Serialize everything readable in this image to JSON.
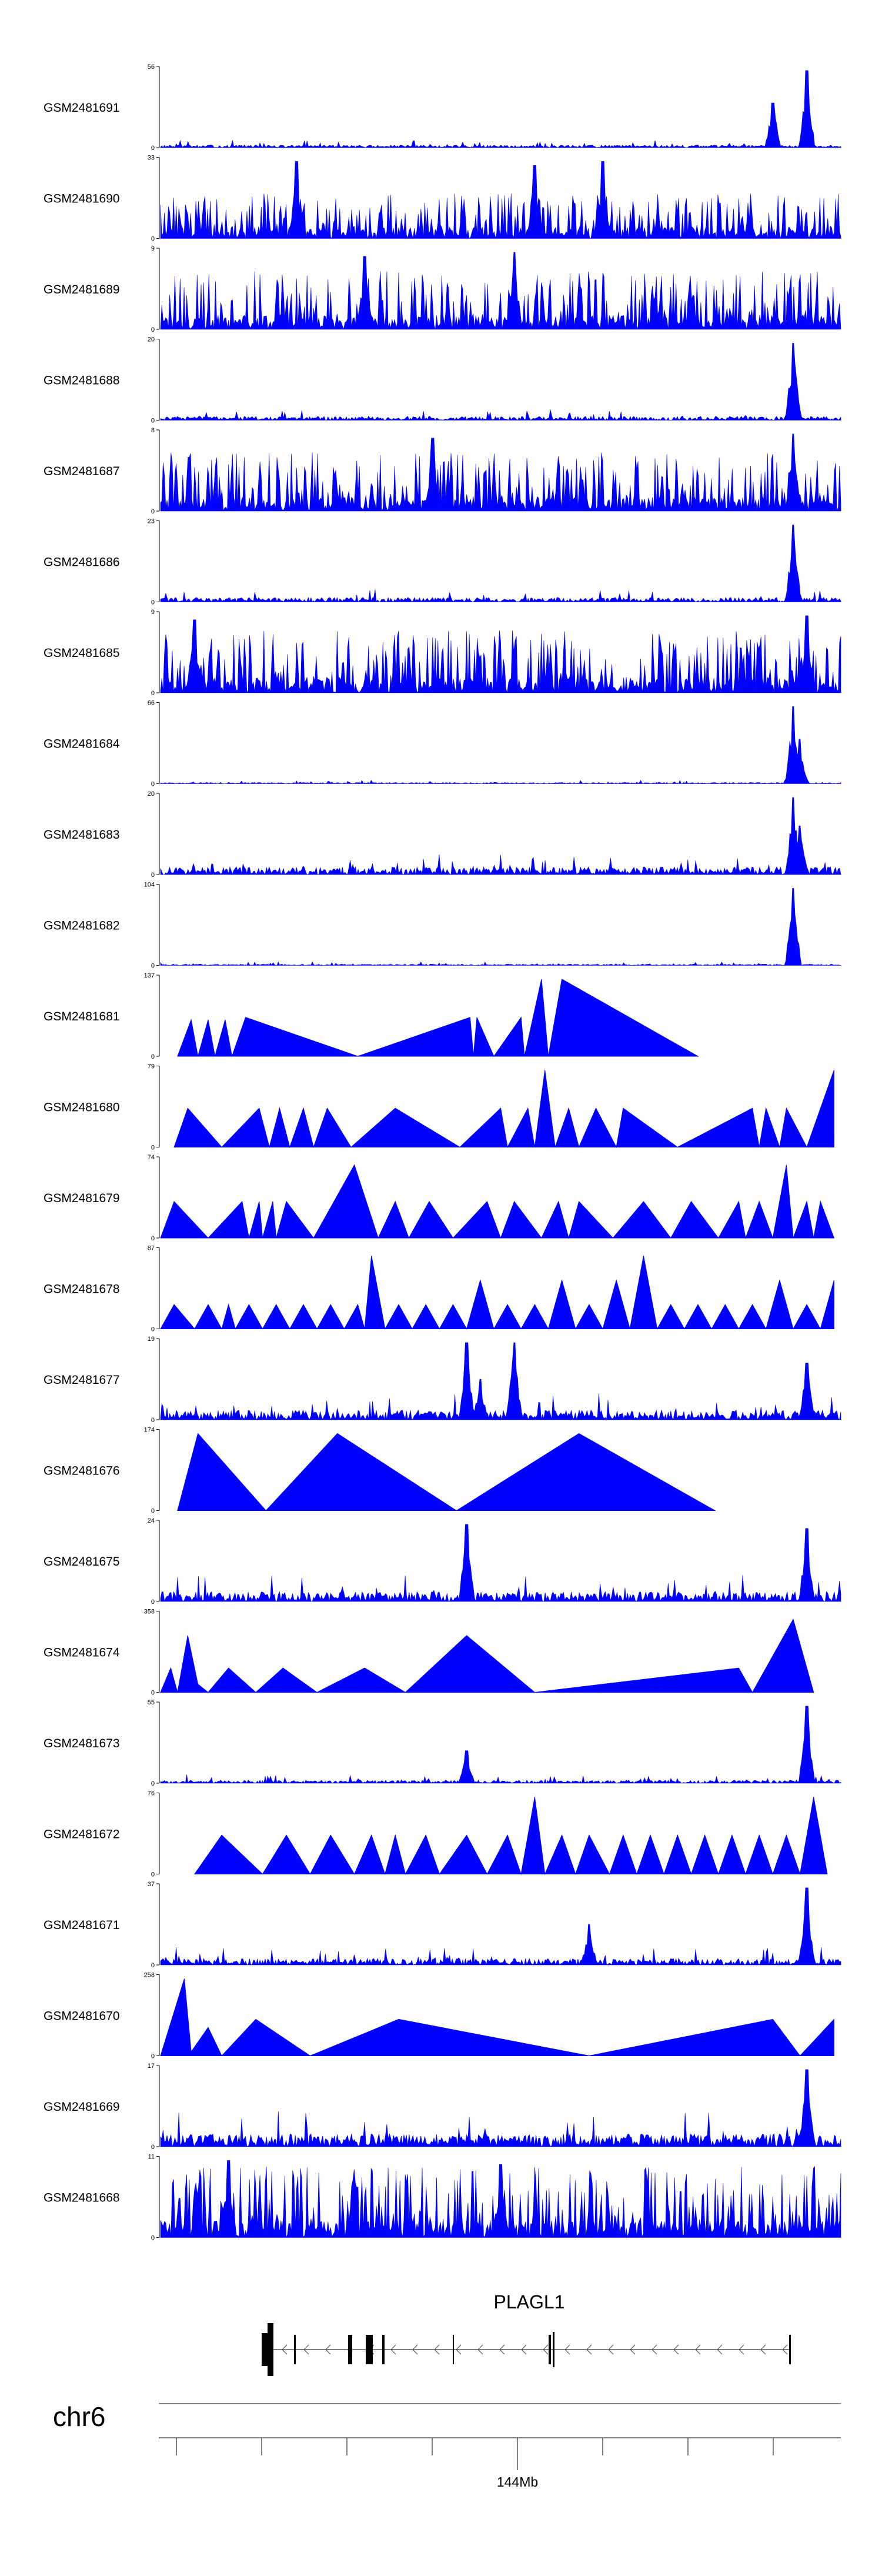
{
  "chart_data": {
    "type": "area",
    "color": "#0000ff",
    "xlim": [
      143860000,
      144060000
    ],
    "chromosome": "chr6",
    "position_label": "144Mb",
    "position_tick": 144000000,
    "gene": "PLAGL1",
    "tracks": [
      {
        "name": "GSM2481691",
        "max": 56,
        "min": 0,
        "style": "dense",
        "base": 4,
        "spikes": [
          [
            0.9,
            0.55
          ],
          [
            0.95,
            0.95
          ]
        ]
      },
      {
        "name": "GSM2481690",
        "max": 33,
        "min": 0,
        "style": "bars",
        "base": 35,
        "spikes": [
          [
            0.2,
            0.95
          ],
          [
            0.55,
            0.9
          ],
          [
            0.65,
            0.95
          ]
        ]
      },
      {
        "name": "GSM2481689",
        "max": 9,
        "min": 0,
        "style": "bars",
        "base": 45,
        "spikes": [
          [
            0.3,
            0.9
          ],
          [
            0.52,
            0.95
          ]
        ]
      },
      {
        "name": "GSM2481688",
        "max": 20,
        "min": 0,
        "style": "dense",
        "base": 6,
        "spikes": [
          [
            0.93,
            0.95
          ]
        ]
      },
      {
        "name": "GSM2481687",
        "max": 8,
        "min": 0,
        "style": "bars",
        "base": 45,
        "spikes": [
          [
            0.4,
            0.9
          ],
          [
            0.93,
            0.95
          ]
        ]
      },
      {
        "name": "GSM2481686",
        "max": 23,
        "min": 0,
        "style": "dense",
        "base": 7,
        "spikes": [
          [
            0.93,
            0.95
          ]
        ]
      },
      {
        "name": "GSM2481685",
        "max": 9,
        "min": 0,
        "style": "bars",
        "base": 48,
        "spikes": [
          [
            0.05,
            0.9
          ],
          [
            0.95,
            0.95
          ]
        ]
      },
      {
        "name": "GSM2481684",
        "max": 66,
        "min": 0,
        "style": "dense",
        "base": 2,
        "spikes": [
          [
            0.93,
            0.95
          ],
          [
            0.94,
            0.55
          ]
        ]
      },
      {
        "name": "GSM2481683",
        "max": 20,
        "min": 0,
        "style": "dense",
        "base": 12,
        "spikes": [
          [
            0.93,
            0.95
          ],
          [
            0.94,
            0.6
          ]
        ]
      },
      {
        "name": "GSM2481682",
        "max": 104,
        "min": 0,
        "style": "dense",
        "base": 2,
        "spikes": [
          [
            0.93,
            0.95
          ]
        ]
      },
      {
        "name": "GSM2481681",
        "max": 137,
        "min": 0,
        "style": "tri",
        "points": [
          [
            0.025,
            0
          ],
          [
            0.045,
            0.45
          ],
          [
            0.055,
            0
          ],
          [
            0.07,
            0.45
          ],
          [
            0.08,
            0
          ],
          [
            0.095,
            0.45
          ],
          [
            0.105,
            0
          ],
          [
            0.125,
            0.48
          ],
          [
            0.29,
            0
          ],
          [
            0.455,
            0.48
          ],
          [
            0.46,
            0
          ],
          [
            0.465,
            0.48
          ],
          [
            0.49,
            0
          ],
          [
            0.53,
            0.48
          ],
          [
            0.535,
            0
          ],
          [
            0.56,
            0.95
          ],
          [
            0.57,
            0
          ],
          [
            0.59,
            0.95
          ],
          [
            0.79,
            0
          ]
        ]
      },
      {
        "name": "GSM2481680",
        "max": 79,
        "min": 0,
        "style": "tri",
        "points": [
          [
            0.02,
            0
          ],
          [
            0.04,
            0.48
          ],
          [
            0.09,
            0
          ],
          [
            0.145,
            0.48
          ],
          [
            0.16,
            0
          ],
          [
            0.175,
            0.48
          ],
          [
            0.19,
            0
          ],
          [
            0.21,
            0.48
          ],
          [
            0.225,
            0
          ],
          [
            0.245,
            0.48
          ],
          [
            0.28,
            0
          ],
          [
            0.345,
            0.48
          ],
          [
            0.44,
            0
          ],
          [
            0.5,
            0.48
          ],
          [
            0.51,
            0
          ],
          [
            0.54,
            0.48
          ],
          [
            0.55,
            0
          ],
          [
            0.565,
            0.95
          ],
          [
            0.58,
            0
          ],
          [
            0.6,
            0.48
          ],
          [
            0.615,
            0
          ],
          [
            0.64,
            0.48
          ],
          [
            0.67,
            0
          ],
          [
            0.68,
            0.48
          ],
          [
            0.76,
            0
          ],
          [
            0.87,
            0.48
          ],
          [
            0.88,
            0
          ],
          [
            0.89,
            0.48
          ],
          [
            0.91,
            0
          ],
          [
            0.92,
            0.48
          ],
          [
            0.95,
            0
          ],
          [
            0.99,
            0.95
          ]
        ]
      },
      {
        "name": "GSM2481679",
        "max": 74,
        "min": 0,
        "style": "tri",
        "points": [
          [
            0.0,
            0.0
          ],
          [
            0.02,
            0.45
          ],
          [
            0.07,
            0
          ],
          [
            0.12,
            0.45
          ],
          [
            0.13,
            0
          ],
          [
            0.145,
            0.45
          ],
          [
            0.15,
            0
          ],
          [
            0.165,
            0.45
          ],
          [
            0.17,
            0
          ],
          [
            0.185,
            0.45
          ],
          [
            0.225,
            0
          ],
          [
            0.285,
            0.9
          ],
          [
            0.32,
            0
          ],
          [
            0.345,
            0.45
          ],
          [
            0.365,
            0
          ],
          [
            0.395,
            0.45
          ],
          [
            0.43,
            0
          ],
          [
            0.48,
            0.45
          ],
          [
            0.5,
            0
          ],
          [
            0.52,
            0.45
          ],
          [
            0.56,
            0
          ],
          [
            0.585,
            0.45
          ],
          [
            0.6,
            0
          ],
          [
            0.615,
            0.45
          ],
          [
            0.665,
            0
          ],
          [
            0.71,
            0.45
          ],
          [
            0.75,
            0
          ],
          [
            0.78,
            0.45
          ],
          [
            0.82,
            0
          ],
          [
            0.85,
            0.45
          ],
          [
            0.86,
            0
          ],
          [
            0.88,
            0.45
          ],
          [
            0.9,
            0
          ],
          [
            0.92,
            0.9
          ],
          [
            0.93,
            0
          ],
          [
            0.95,
            0.45
          ],
          [
            0.96,
            0
          ],
          [
            0.97,
            0.45
          ],
          [
            0.99,
            0
          ]
        ]
      },
      {
        "name": "GSM2481678",
        "max": 87,
        "min": 0,
        "style": "tri",
        "points": [
          [
            0.0,
            0
          ],
          [
            0.02,
            0.3
          ],
          [
            0.05,
            0
          ],
          [
            0.07,
            0.3
          ],
          [
            0.09,
            0
          ],
          [
            0.1,
            0.3
          ],
          [
            0.11,
            0
          ],
          [
            0.13,
            0.3
          ],
          [
            0.15,
            0
          ],
          [
            0.17,
            0.3
          ],
          [
            0.19,
            0
          ],
          [
            0.21,
            0.3
          ],
          [
            0.23,
            0
          ],
          [
            0.25,
            0.3
          ],
          [
            0.27,
            0
          ],
          [
            0.29,
            0.3
          ],
          [
            0.3,
            0
          ],
          [
            0.31,
            0.9
          ],
          [
            0.33,
            0
          ],
          [
            0.35,
            0.3
          ],
          [
            0.37,
            0
          ],
          [
            0.39,
            0.3
          ],
          [
            0.41,
            0
          ],
          [
            0.43,
            0.3
          ],
          [
            0.45,
            0
          ],
          [
            0.47,
            0.6
          ],
          [
            0.49,
            0
          ],
          [
            0.51,
            0.3
          ],
          [
            0.53,
            0
          ],
          [
            0.55,
            0.3
          ],
          [
            0.57,
            0
          ],
          [
            0.59,
            0.6
          ],
          [
            0.61,
            0
          ],
          [
            0.63,
            0.3
          ],
          [
            0.65,
            0
          ],
          [
            0.67,
            0.6
          ],
          [
            0.69,
            0
          ],
          [
            0.71,
            0.9
          ],
          [
            0.73,
            0
          ],
          [
            0.75,
            0.3
          ],
          [
            0.77,
            0
          ],
          [
            0.79,
            0.3
          ],
          [
            0.81,
            0
          ],
          [
            0.83,
            0.3
          ],
          [
            0.85,
            0
          ],
          [
            0.87,
            0.3
          ],
          [
            0.89,
            0
          ],
          [
            0.91,
            0.6
          ],
          [
            0.93,
            0
          ],
          [
            0.95,
            0.3
          ],
          [
            0.97,
            0
          ],
          [
            0.99,
            0.6
          ]
        ]
      },
      {
        "name": "GSM2481677",
        "max": 19,
        "min": 0,
        "style": "dense",
        "base": 15,
        "spikes": [
          [
            0.45,
            0.95
          ],
          [
            0.47,
            0.5
          ],
          [
            0.52,
            0.95
          ],
          [
            0.95,
            0.7
          ]
        ]
      },
      {
        "name": "GSM2481676",
        "max": 174,
        "min": 0,
        "style": "tri",
        "points": [
          [
            0.025,
            0
          ],
          [
            0.055,
            0.95
          ],
          [
            0.155,
            0
          ],
          [
            0.26,
            0.95
          ],
          [
            0.435,
            0
          ],
          [
            0.615,
            0.95
          ],
          [
            0.815,
            0
          ]
        ]
      },
      {
        "name": "GSM2481675",
        "max": 24,
        "min": 0,
        "style": "dense",
        "base": 15,
        "spikes": [
          [
            0.45,
            0.95
          ],
          [
            0.95,
            0.9
          ]
        ]
      },
      {
        "name": "GSM2481674",
        "max": 358,
        "min": 0,
        "style": "tri",
        "points": [
          [
            0.0,
            0
          ],
          [
            0.015,
            0.3
          ],
          [
            0.025,
            0
          ],
          [
            0.04,
            0.7
          ],
          [
            0.055,
            0.1
          ],
          [
            0.07,
            0
          ],
          [
            0.1,
            0.3
          ],
          [
            0.14,
            0
          ],
          [
            0.18,
            0.3
          ],
          [
            0.23,
            0
          ],
          [
            0.3,
            0.3
          ],
          [
            0.36,
            0
          ],
          [
            0.45,
            0.7
          ],
          [
            0.55,
            0
          ],
          [
            0.85,
            0.3
          ],
          [
            0.87,
            0
          ],
          [
            0.93,
            0.9
          ],
          [
            0.96,
            0
          ]
        ]
      },
      {
        "name": "GSM2481673",
        "max": 55,
        "min": 0,
        "style": "dense",
        "base": 5,
        "spikes": [
          [
            0.45,
            0.4
          ],
          [
            0.95,
            0.95
          ]
        ]
      },
      {
        "name": "GSM2481672",
        "max": 76,
        "min": 0,
        "style": "tri",
        "points": [
          [
            0.05,
            0
          ],
          [
            0.09,
            0.48
          ],
          [
            0.15,
            0
          ],
          [
            0.185,
            0.48
          ],
          [
            0.22,
            0
          ],
          [
            0.25,
            0.48
          ],
          [
            0.285,
            0
          ],
          [
            0.31,
            0.48
          ],
          [
            0.33,
            0
          ],
          [
            0.345,
            0.48
          ],
          [
            0.36,
            0
          ],
          [
            0.39,
            0.48
          ],
          [
            0.41,
            0
          ],
          [
            0.45,
            0.48
          ],
          [
            0.48,
            0
          ],
          [
            0.51,
            0.48
          ],
          [
            0.53,
            0
          ],
          [
            0.55,
            0.95
          ],
          [
            0.565,
            0
          ],
          [
            0.59,
            0.48
          ],
          [
            0.61,
            0
          ],
          [
            0.63,
            0.48
          ],
          [
            0.66,
            0
          ],
          [
            0.68,
            0.48
          ],
          [
            0.7,
            0
          ],
          [
            0.72,
            0.48
          ],
          [
            0.74,
            0
          ],
          [
            0.76,
            0.48
          ],
          [
            0.78,
            0
          ],
          [
            0.8,
            0.48
          ],
          [
            0.82,
            0
          ],
          [
            0.84,
            0.48
          ],
          [
            0.86,
            0
          ],
          [
            0.88,
            0.48
          ],
          [
            0.9,
            0
          ],
          [
            0.92,
            0.48
          ],
          [
            0.94,
            0
          ],
          [
            0.96,
            0.95
          ],
          [
            0.98,
            0
          ]
        ]
      },
      {
        "name": "GSM2481671",
        "max": 37,
        "min": 0,
        "style": "dense",
        "base": 10,
        "spikes": [
          [
            0.63,
            0.5
          ],
          [
            0.95,
            0.95
          ]
        ]
      },
      {
        "name": "GSM2481670",
        "max": 258,
        "min": 0,
        "style": "tri",
        "points": [
          [
            0.0,
            0
          ],
          [
            0.035,
            0.95
          ],
          [
            0.045,
            0.05
          ],
          [
            0.07,
            0.35
          ],
          [
            0.09,
            0
          ],
          [
            0.14,
            0.45
          ],
          [
            0.22,
            0
          ],
          [
            0.35,
            0.45
          ],
          [
            0.63,
            0
          ],
          [
            0.9,
            0.45
          ],
          [
            0.94,
            0
          ],
          [
            0.99,
            0.45
          ]
        ]
      },
      {
        "name": "GSM2481669",
        "max": 17,
        "min": 0,
        "style": "dense",
        "base": 20,
        "spikes": [
          [
            0.95,
            0.95
          ]
        ]
      },
      {
        "name": "GSM2481668",
        "max": 11,
        "min": 0,
        "style": "bars",
        "base": 55,
        "spikes": [
          [
            0.1,
            0.95
          ],
          [
            0.5,
            0.9
          ]
        ]
      }
    ]
  }
}
